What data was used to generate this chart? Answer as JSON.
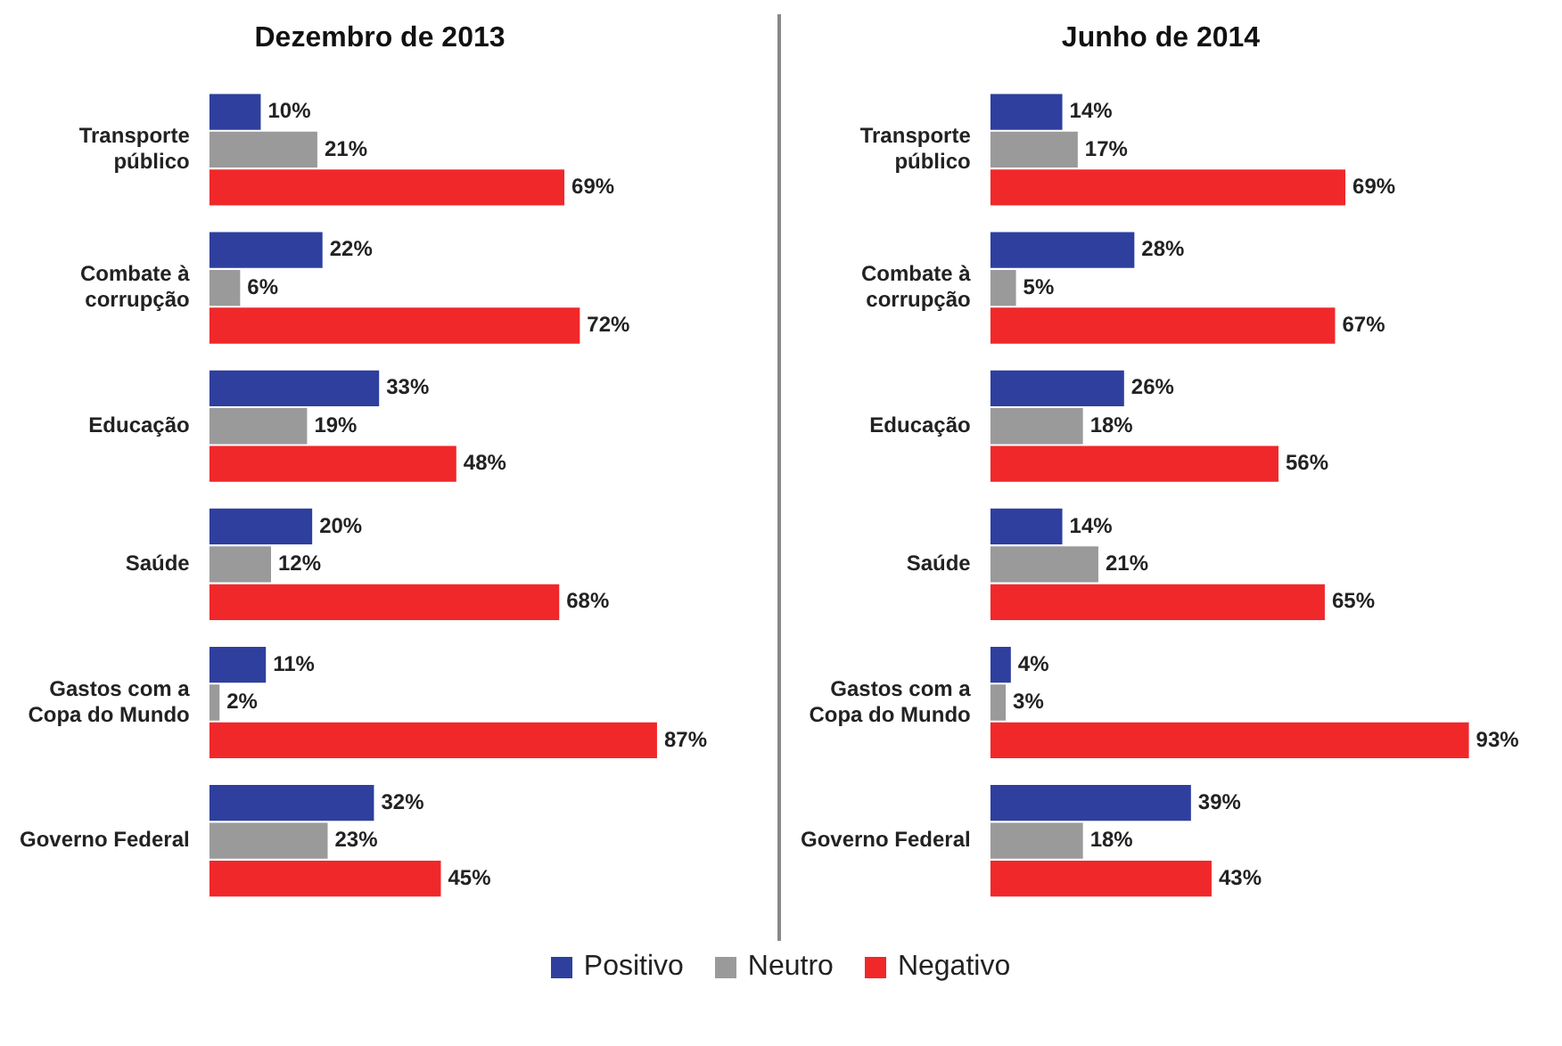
{
  "chart_data": [
    {
      "type": "bar",
      "orientation": "horizontal",
      "title": "Dezembro de 2013",
      "legend": "bottom",
      "categories": [
        "Transporte público",
        "Combate à corrupção",
        "Educação",
        "Saúde",
        "Gastos com a Copa do Mundo",
        "Governo Federal"
      ],
      "series": [
        {
          "name": "Positivo",
          "color": "#2e3f9e",
          "values": [
            10,
            22,
            33,
            20,
            11,
            32
          ],
          "value_labels": [
            "10%",
            "22%",
            "33%",
            "20%",
            "11%",
            "32%"
          ]
        },
        {
          "name": "Neutro",
          "color": "#9a9a9a",
          "values": [
            21,
            6,
            19,
            12,
            2,
            23
          ],
          "value_labels": [
            "21%",
            "6%",
            "19%",
            "12%",
            "2%",
            "23%"
          ]
        },
        {
          "name": "Negativo",
          "color": "#f0282a",
          "values": [
            69,
            72,
            48,
            68,
            87,
            45
          ],
          "value_labels": [
            "69%",
            "72%",
            "48%",
            "68%",
            "87%",
            "45%"
          ]
        }
      ]
    },
    {
      "type": "bar",
      "orientation": "horizontal",
      "title": "Junho de 2014",
      "categories": [
        "Transporte público",
        "Combate à corrupção",
        "Educação",
        "Saúde",
        "Gastos com a Copa do Mundo",
        "Governo Federal"
      ],
      "series": [
        {
          "color": "#2e3f9e",
          "values": [
            14,
            28,
            26,
            14,
            4,
            39
          ],
          "value_labels": [
            "14%",
            "28%",
            "26%",
            "14%",
            "4%",
            "39%"
          ]
        },
        {
          "color": "#9a9a9a",
          "values": [
            17,
            5,
            18,
            21,
            3,
            18
          ],
          "value_labels": [
            "17%",
            "5%",
            "18%",
            "21%",
            "3%",
            "18%"
          ]
        },
        {
          "color": "#f0282a",
          "values": [
            69,
            67,
            56,
            65,
            93,
            43
          ],
          "value_labels": [
            "69%",
            "67%",
            "56%",
            "65%",
            "93%",
            "43%"
          ]
        }
      ]
    }
  ]
}
